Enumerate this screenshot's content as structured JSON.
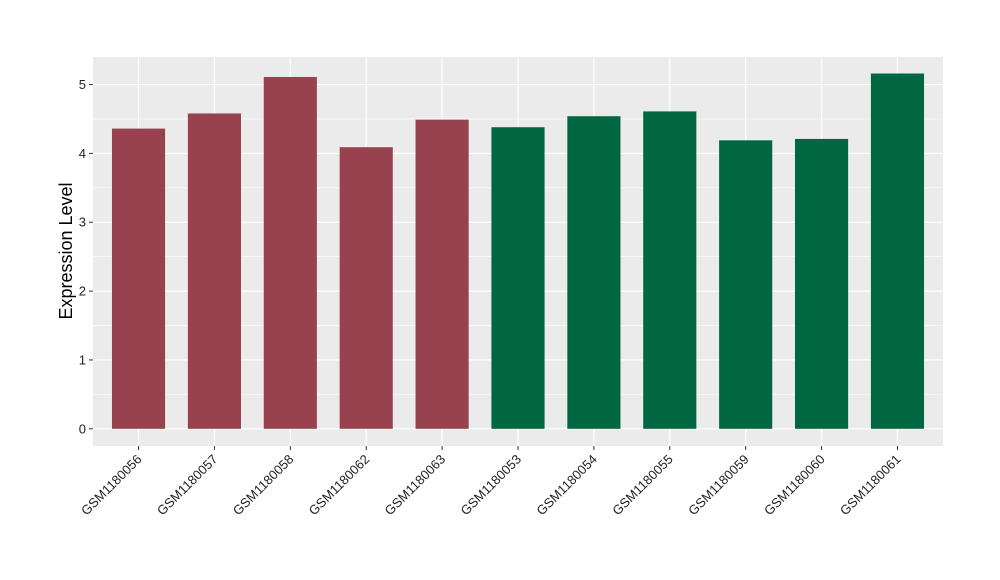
{
  "chart_data": {
    "type": "bar",
    "title": "",
    "xlabel": "",
    "ylabel": "Expression Level",
    "categories": [
      "GSM1180056",
      "GSM1180057",
      "GSM1180058",
      "GSM1180062",
      "GSM1180063",
      "GSM1180053",
      "GSM1180054",
      "GSM1180055",
      "GSM1180059",
      "GSM1180060",
      "GSM1180061"
    ],
    "values": [
      4.36,
      4.58,
      5.11,
      4.09,
      4.49,
      4.38,
      4.54,
      4.61,
      4.19,
      4.21,
      5.16
    ],
    "bar_colors": [
      "#98414f",
      "#98414f",
      "#98414f",
      "#98414f",
      "#98414f",
      "#006743",
      "#006743",
      "#006743",
      "#006743",
      "#006743",
      "#006743"
    ],
    "ylim": [
      -0.25,
      5.4
    ],
    "yticks": [
      0,
      1,
      2,
      3,
      4,
      5
    ],
    "grid": true,
    "legend": "none",
    "panel_background": "#ebebeb",
    "grid_color": "#ffffff"
  }
}
